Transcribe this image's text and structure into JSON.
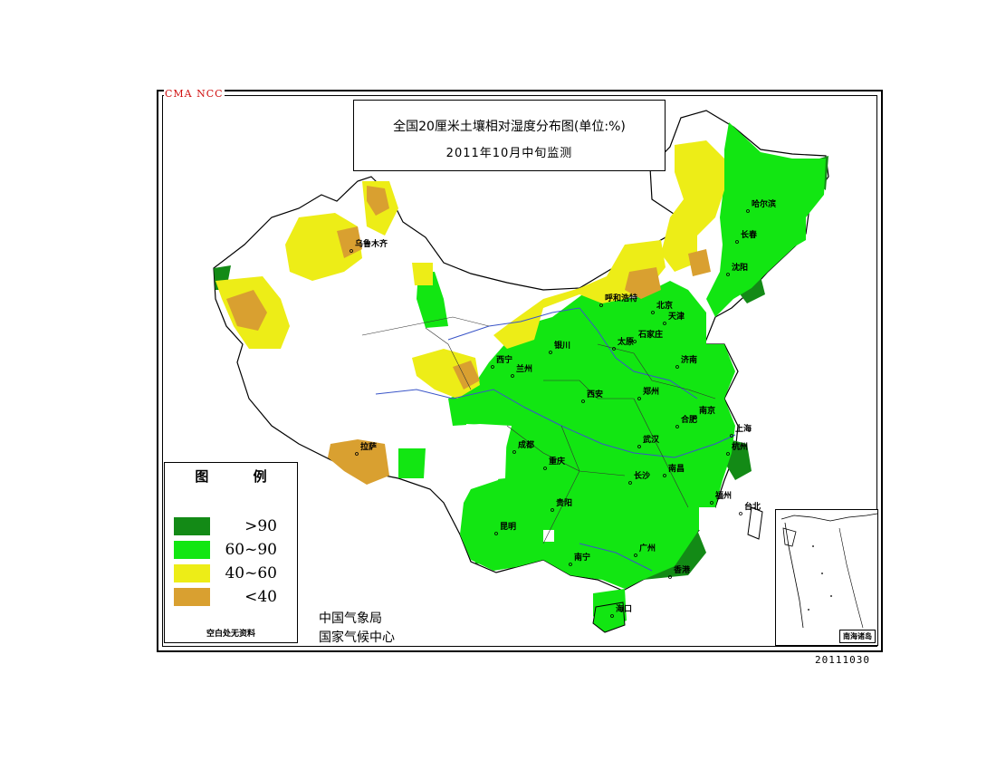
{
  "map": {
    "org_mark": "CMA NCC",
    "title_line1": "全国20厘米土壤相对湿度分布图(单位:%)",
    "title_line2": "2011年10月中旬监测",
    "legend": {
      "heading": "图 例",
      "items": [
        {
          "label": ">90",
          "color": "#138a16"
        },
        {
          "label": "60~90",
          "color": "#12e612"
        },
        {
          "label": "40~60",
          "color": "#eded17"
        },
        {
          "label": "<40",
          "color": "#d9a030"
        }
      ],
      "note": "空白处无资料"
    },
    "agency_line1": "中国气象局",
    "agency_line2": "国家气候中心",
    "stamp": "20111030",
    "inset_label": "南海诸岛",
    "cities": [
      "乌鲁木齐",
      "哈尔滨",
      "长春",
      "沈阳",
      "呼和浩特",
      "北京",
      "天津",
      "石家庄",
      "太原",
      "银川",
      "西宁",
      "兰州",
      "济南",
      "郑州",
      "西安",
      "合肥",
      "南京",
      "上海",
      "杭州",
      "武汉",
      "成都",
      "重庆",
      "长沙",
      "南昌",
      "福州",
      "贵阳",
      "昆明",
      "南宁",
      "广州",
      "香港",
      "海口",
      "台北",
      "拉萨"
    ]
  }
}
